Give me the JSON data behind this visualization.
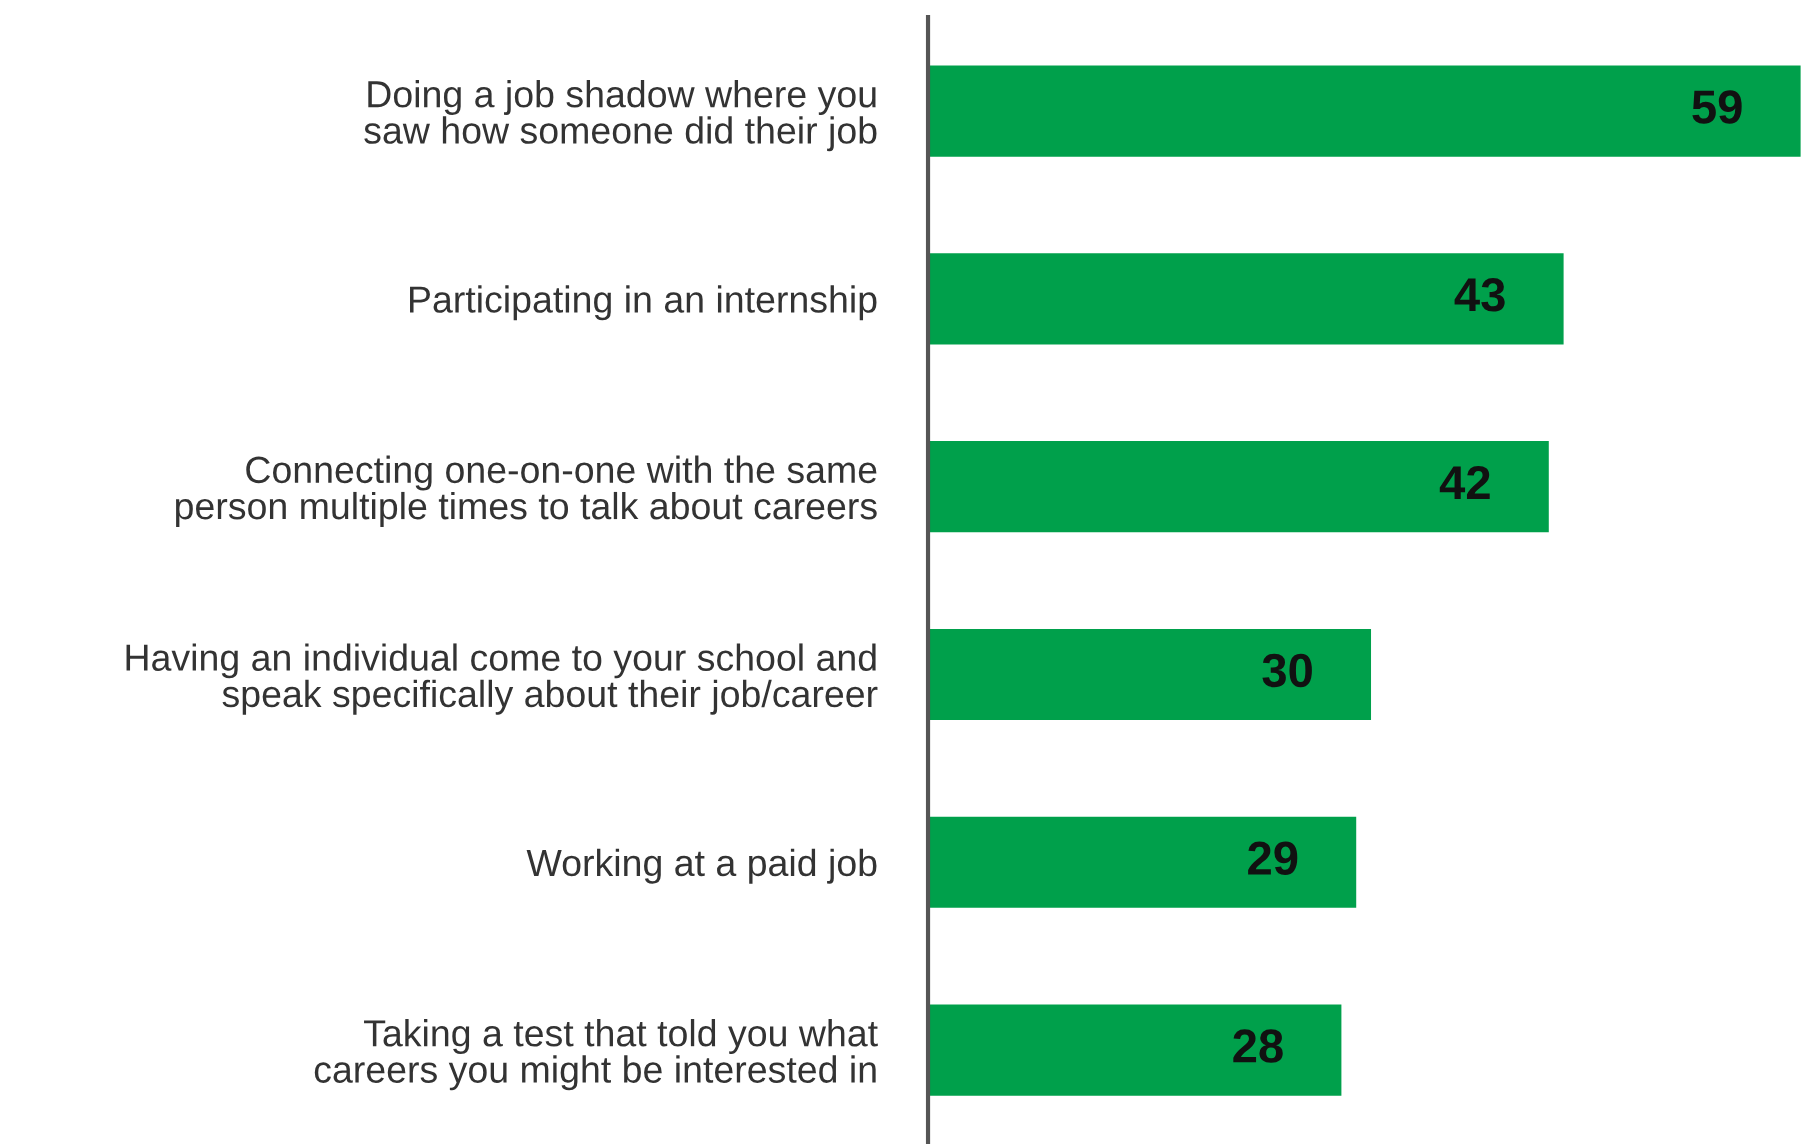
{
  "chart_data": {
    "type": "bar",
    "orientation": "horizontal",
    "categories": [
      "Doing a job shadow where you\nsaw how someone did their job",
      "Participating in an internship",
      "Connecting one-on-one with the same\nperson multiple times to talk about careers",
      "Having an individual come to your school and\nspeak specifically about their job/career",
      "Working at a paid job",
      "Taking a test that told you what\ncareers you might be interested in"
    ],
    "values": [
      59,
      43,
      42,
      30,
      29,
      28
    ],
    "color": "#00a04b",
    "data_labels": true,
    "grid": false,
    "legend": false,
    "tick_labels": "y"
  }
}
